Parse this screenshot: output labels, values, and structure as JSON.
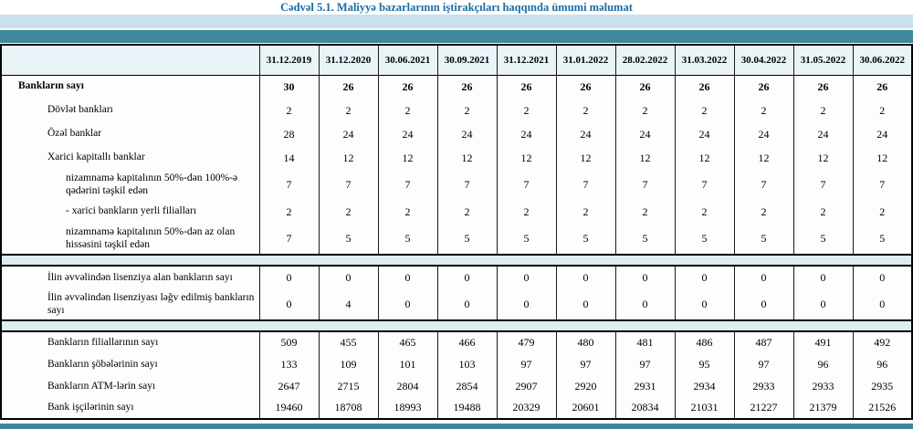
{
  "title": "Cədvəl 5.1. Maliyyə bazarlarının iştirakçıları haqqında ümumi məlumat",
  "colors": {
    "title_text": "#1b6ca5",
    "band_light": "#c8e1ea",
    "band_teal": "#3f879c",
    "separator_band": "#ddedf2",
    "header_bg": "#e9f3f8",
    "grid_line": "#1a1a1a",
    "outer_border": "#000000"
  },
  "table": {
    "corner_label": "",
    "date_columns": [
      "31.12.2019",
      "31.12.2020",
      "30.06.2021",
      "30.09.2021",
      "31.12.2021",
      "31.01.2022",
      "28.02.2022",
      "31.03.2022",
      "30.04.2022",
      "31.05.2022",
      "30.06.2022"
    ],
    "rows": [
      {
        "type": "data",
        "label": "Bankların sayı",
        "indent": 0,
        "bold": true,
        "values": [
          "30",
          "26",
          "26",
          "26",
          "26",
          "26",
          "26",
          "26",
          "26",
          "26",
          "26"
        ]
      },
      {
        "type": "data",
        "label": "Dövlət bankları",
        "indent": 1,
        "values": [
          "2",
          "2",
          "2",
          "2",
          "2",
          "2",
          "2",
          "2",
          "2",
          "2",
          "2"
        ]
      },
      {
        "type": "data",
        "label": "Özəl banklar",
        "indent": 1,
        "values": [
          "28",
          "24",
          "24",
          "24",
          "24",
          "24",
          "24",
          "24",
          "24",
          "24",
          "24"
        ]
      },
      {
        "type": "data",
        "label": "Xarici kapitallı banklar",
        "indent": 1,
        "values": [
          "14",
          "12",
          "12",
          "12",
          "12",
          "12",
          "12",
          "12",
          "12",
          "12",
          "12"
        ]
      },
      {
        "type": "data",
        "label": "nizamnamə kapitalının 50%-dən 100%-ə qədərini təşkil edən",
        "indent": 2,
        "values": [
          "7",
          "7",
          "7",
          "7",
          "7",
          "7",
          "7",
          "7",
          "7",
          "7",
          "7"
        ]
      },
      {
        "type": "data",
        "label": "- xarici bankların yerli filialları",
        "indent": 2,
        "values": [
          "2",
          "2",
          "2",
          "2",
          "2",
          "2",
          "2",
          "2",
          "2",
          "2",
          "2"
        ]
      },
      {
        "type": "data",
        "label": "nizamnamə kapitalının 50%-dən az olan hissəsini təşkil edən",
        "indent": 2,
        "values": [
          "7",
          "5",
          "5",
          "5",
          "5",
          "5",
          "5",
          "5",
          "5",
          "5",
          "5"
        ]
      },
      {
        "type": "separator"
      },
      {
        "type": "data",
        "label": "İlin əvvəlindən lisenziya alan bankların sayı",
        "indent": 1,
        "values": [
          "0",
          "0",
          "0",
          "0",
          "0",
          "0",
          "0",
          "0",
          "0",
          "0",
          "0"
        ]
      },
      {
        "type": "data",
        "label": "İlin əvvəlindən lisenziyası ləğv edilmiş bankların sayı",
        "indent": 1,
        "values": [
          "0",
          "4",
          "0",
          "0",
          "0",
          "0",
          "0",
          "0",
          "0",
          "0",
          "0"
        ]
      },
      {
        "type": "separator"
      },
      {
        "type": "data",
        "label": "Bankların filiallarının sayı",
        "indent": 1,
        "values": [
          "509",
          "455",
          "465",
          "466",
          "479",
          "480",
          "481",
          "486",
          "487",
          "491",
          "492"
        ]
      },
      {
        "type": "data",
        "label": "Bankların şöbələrinin sayı",
        "indent": 1,
        "values": [
          "133",
          "109",
          "101",
          "103",
          "97",
          "97",
          "97",
          "95",
          "97",
          "96",
          "96"
        ]
      },
      {
        "type": "data",
        "label": "Bankların ATM-lərin sayı",
        "indent": 1,
        "values": [
          "2647",
          "2715",
          "2804",
          "2854",
          "2907",
          "2920",
          "2931",
          "2934",
          "2933",
          "2933",
          "2935"
        ]
      },
      {
        "type": "data",
        "label": "Bank işçilərinin sayı",
        "indent": 1,
        "values": [
          "19460",
          "18708",
          "18993",
          "19488",
          "20329",
          "20601",
          "20834",
          "21031",
          "21227",
          "21379",
          "21526"
        ]
      }
    ]
  }
}
